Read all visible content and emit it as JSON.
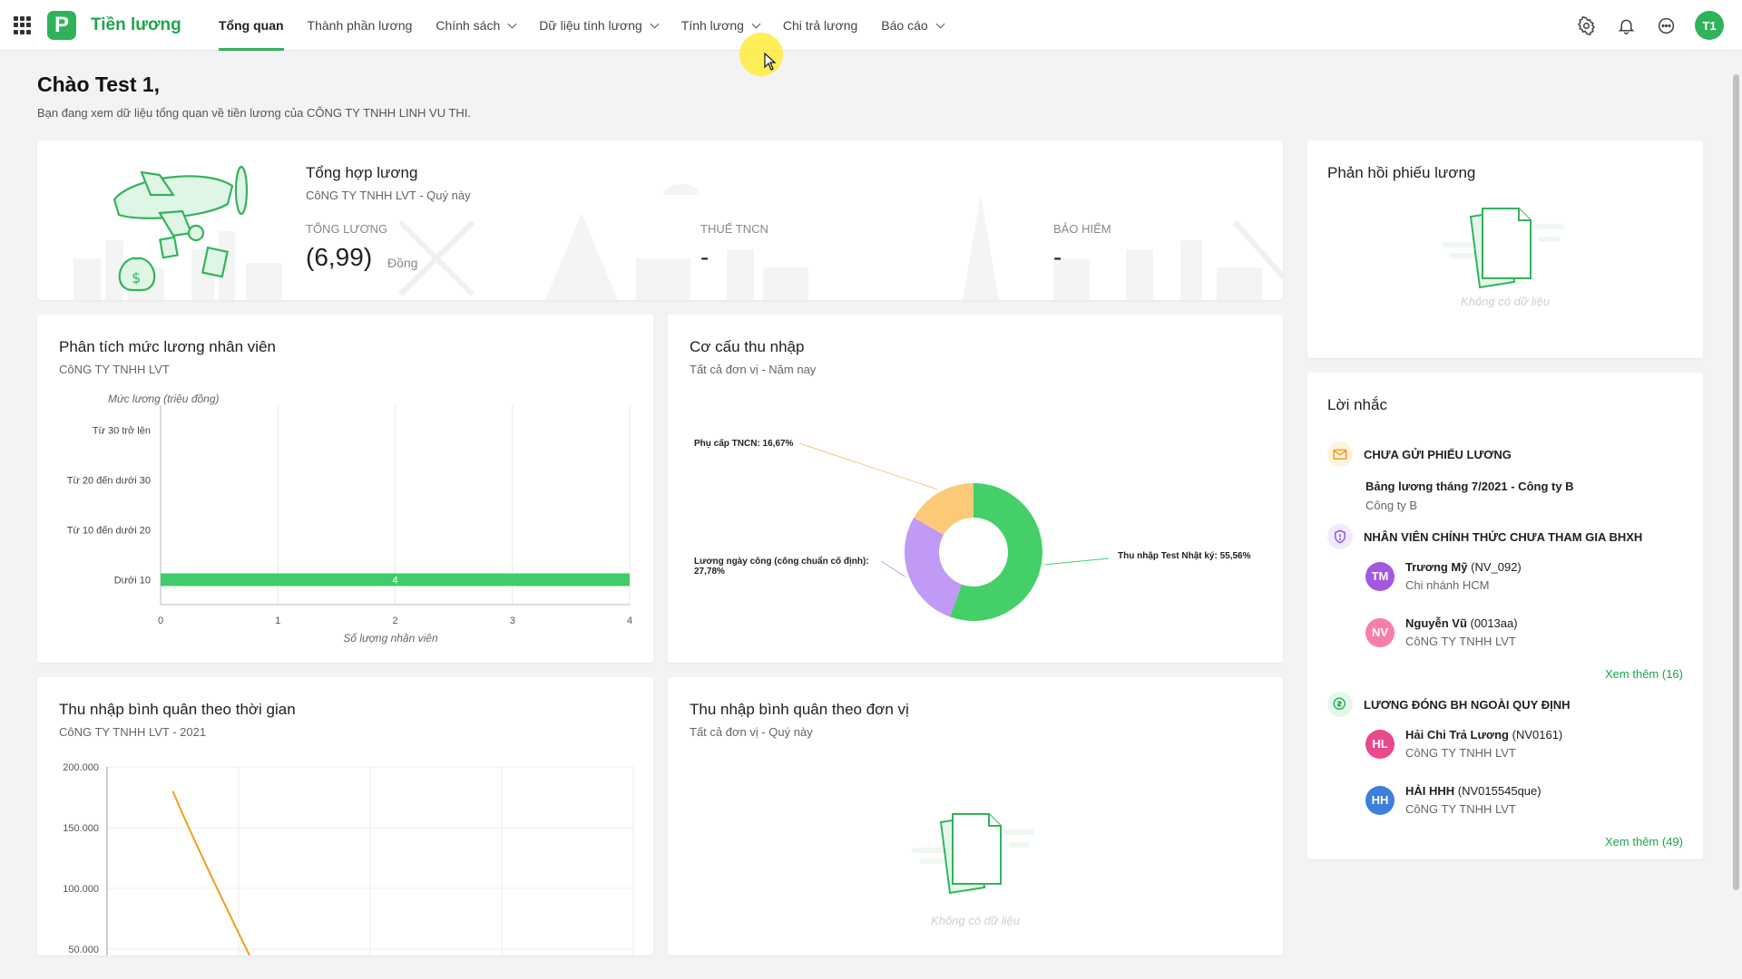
{
  "app": {
    "name": "Tiền lương",
    "logo_letter": "P"
  },
  "nav": [
    {
      "label": "Tổng quan",
      "active": true,
      "dropdown": false
    },
    {
      "label": "Thành phần lương",
      "active": false,
      "dropdown": false
    },
    {
      "label": "Chính sách",
      "active": false,
      "dropdown": true
    },
    {
      "label": "Dữ liệu tính lương",
      "active": false,
      "dropdown": true
    },
    {
      "label": "Tính lương",
      "active": false,
      "dropdown": true
    },
    {
      "label": "Chi trả lương",
      "active": false,
      "dropdown": false
    },
    {
      "label": "Báo cáo",
      "active": false,
      "dropdown": true
    }
  ],
  "user": {
    "initials": "T1",
    "color": "#2fb35a"
  },
  "greeting": {
    "title": "Chào Test 1,",
    "subtitle": "Bạn đang xem dữ liệu tổng quan về tiền lương của CÔNG TY TNHH LINH VU THI."
  },
  "summary": {
    "title": "Tổng hợp lương",
    "subtitle": "CôNG TY TNHH LVT - Quý này",
    "total_label": "Tổng lương",
    "total_value": "(6,99)",
    "total_unit": "Đồng",
    "tax_label": "Thuế TNCN",
    "tax_value": "-",
    "insurance_label": "Bảo hiểm",
    "insurance_value": "-"
  },
  "analysis_card": {
    "title": "Phân tích mức lương nhân viên",
    "subtitle": "CôNG TY TNHH LVT"
  },
  "structure_card": {
    "title": "Cơ cấu thu nhập",
    "subtitle": "Tất cả đơn vị - Năm nay"
  },
  "time_card": {
    "title": "Thu nhập bình quân theo thời gian",
    "subtitle": "CôNG TY TNHH LVT - 2021"
  },
  "unit_card": {
    "title": "Thu nhập bình quân theo đơn vị",
    "subtitle": "Tất cả đơn vị - Quý này",
    "no_data": "Không có dữ liệu"
  },
  "feedback_card": {
    "title": "Phản hồi phiếu lương",
    "no_data": "Không có dữ liệu"
  },
  "reminder": {
    "title": "Lời nhắc",
    "section1": {
      "title": "Chưa gửi phiếu lương",
      "item_name": "Bảng lương tháng 7/2021 - Công ty B",
      "item_org": "Công ty B"
    },
    "section2": {
      "title": "Nhân viên chính thức chưa tham gia BHXH",
      "people": [
        {
          "initials": "TM",
          "name": "Trương Mỹ",
          "code": "(NV_092)",
          "org": "Chi nhánh HCM",
          "color": "#a259e0"
        },
        {
          "initials": "NV",
          "name": "Nguyễn Vũ",
          "code": "(0013aa)",
          "org": "CôNG TY TNHH LVT",
          "color": "#f77fa5"
        }
      ],
      "see_more": "Xem thêm (16)"
    },
    "section3": {
      "title": "Lương đóng BH ngoài quy định",
      "people": [
        {
          "initials": "HL",
          "name": "Hải Chi Trả Lương",
          "code": "(NV0161)",
          "org": "CôNG TY TNHH LVT",
          "color": "#e84a8f"
        },
        {
          "initials": "HH",
          "name": "HẢI HHH",
          "code": "(NV015545que)",
          "org": "CôNG TY TNHH LVT",
          "color": "#3d7fe0"
        }
      ],
      "see_more": "Xem thêm (49)"
    }
  },
  "chart_data": [
    {
      "type": "bar",
      "orientation": "horizontal",
      "ylabel": "Mức lương (triệu đồng)",
      "xlabel": "Số lượng nhân viên",
      "categories": [
        "Từ 30 trở lên",
        "Từ 20 đến dưới 30",
        "Từ 10 đến dưới 20",
        "Dưới 10"
      ],
      "values": [
        0,
        0,
        0,
        4
      ],
      "data_labels": [
        "",
        "",
        "",
        "4"
      ],
      "xlim": [
        0,
        4
      ],
      "xticks": [
        "0",
        "1",
        "2",
        "3",
        "4"
      ],
      "grid": true,
      "color": "#3fcc6b"
    },
    {
      "type": "pie",
      "donut": true,
      "slices": [
        {
          "label": "Thu nhập Test Nhật ký: 55,56%",
          "value": 55.56,
          "color": "#44cf68"
        },
        {
          "label": "Lương ngày công (công chuẩn cố định): 27,78%",
          "value": 27.78,
          "color": "#c19af5"
        },
        {
          "label": "Phụ cấp TNCN: 16,67%",
          "value": 16.67,
          "color": "#fcc979"
        }
      ]
    },
    {
      "type": "line",
      "yticks": [
        "200.000",
        "150.000",
        "100.000",
        "50.000"
      ],
      "ylim": [
        0,
        200000
      ],
      "grid": true,
      "series": [
        {
          "x": [
            0.5,
            1.15
          ],
          "y": [
            180000,
            30000
          ],
          "color": "#f39c1f"
        }
      ]
    }
  ]
}
